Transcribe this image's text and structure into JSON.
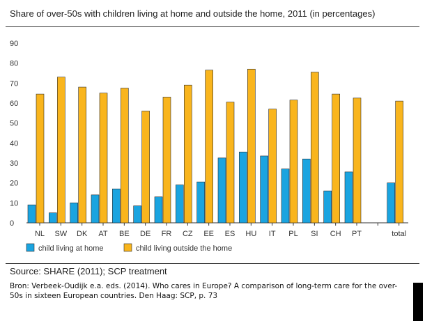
{
  "chart_data": {
    "type": "bar",
    "title": "Share of over-50s with children living at home and outside the home, 2011 (in percentages)",
    "categories": [
      "NL",
      "SW",
      "DK",
      "AT",
      "BE",
      "DE",
      "FR",
      "CZ",
      "EE",
      "ES",
      "HU",
      "IT",
      "PL",
      "SI",
      "CH",
      "PT",
      "",
      "total"
    ],
    "series": [
      {
        "name": "child living at home",
        "color": "#1aa4e0",
        "values": [
          9,
          5,
          10,
          14,
          17,
          8.5,
          13,
          19,
          20.5,
          32.5,
          35.5,
          33.5,
          27,
          32,
          16,
          25.5,
          null,
          20
        ]
      },
      {
        "name": "child living outside the home",
        "color": "#f9b51d",
        "values": [
          64.5,
          73,
          68,
          65,
          67.5,
          56,
          63,
          69,
          76.5,
          60.5,
          77,
          57,
          61.5,
          75.5,
          64.5,
          62.5,
          null,
          61
        ]
      }
    ],
    "ylim": [
      0,
      90
    ],
    "yticks": [
      0,
      10,
      20,
      30,
      40,
      50,
      60,
      70,
      80,
      90
    ],
    "xlabel": "",
    "ylabel": "",
    "grid": false,
    "legend_position": "bottom-left"
  },
  "source": "Source: SHARE (2011); SCP treatment",
  "citation": "Bron: Verbeek-Oudijk e.a. eds. (2014). Who cares in Europe? A comparison of long-term care for the over-50s in sixteen European countries. Den Haag: SCP, p. 73"
}
